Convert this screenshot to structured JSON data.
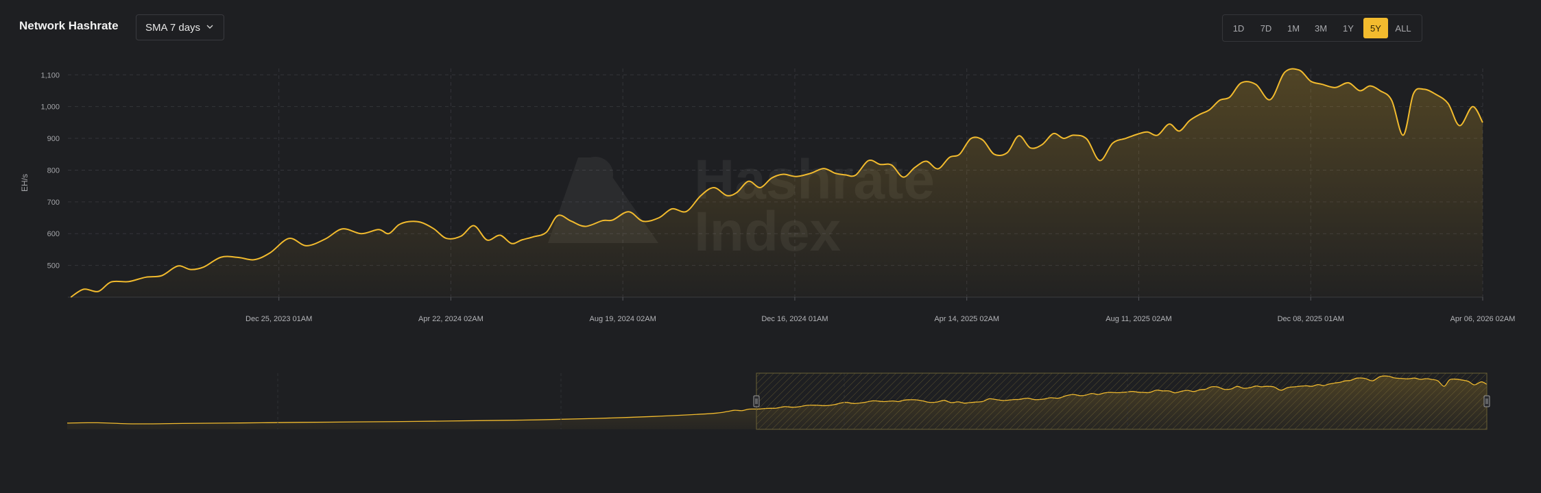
{
  "header": {
    "title": "Network Hashrate",
    "sma_label": "SMA 7 days"
  },
  "ranges": [
    {
      "label": "1D",
      "active": false
    },
    {
      "label": "7D",
      "active": false
    },
    {
      "label": "1M",
      "active": false
    },
    {
      "label": "3M",
      "active": false
    },
    {
      "label": "1Y",
      "active": false
    },
    {
      "label": "5Y",
      "active": true
    },
    {
      "label": "ALL",
      "active": false
    }
  ],
  "watermark": {
    "line1": "Hashrate",
    "line2": "Index"
  },
  "colors": {
    "accent": "#f2bb2e",
    "background": "#1e1f22"
  },
  "chart_data": {
    "type": "area",
    "ylabel": "EH/s",
    "ylim": [
      400,
      1120
    ],
    "yticks": [
      500,
      600,
      700,
      800,
      900,
      1000,
      1100
    ],
    "ytick_labels": [
      "500",
      "600",
      "700",
      "800",
      "900",
      "1,000",
      "1,100"
    ],
    "xlim": [
      "2023-08-01",
      "2026-04-06"
    ],
    "xtick_labels": [
      {
        "date": "2023-12-25",
        "label": "Dec 25, 2023 01AM"
      },
      {
        "date": "2024-04-22",
        "label": "Apr 22, 2024 02AM"
      },
      {
        "date": "2024-08-19",
        "label": "Aug 19, 2024 02AM"
      },
      {
        "date": "2024-12-16",
        "label": "Dec 16, 2024 01AM"
      },
      {
        "date": "2025-04-14",
        "label": "Apr 14, 2025 02AM"
      },
      {
        "date": "2025-08-11",
        "label": "Aug 11, 2025 02AM"
      },
      {
        "date": "2025-12-08",
        "label": "Dec 08, 2025 01AM"
      },
      {
        "date": "2026-04-06",
        "label": "Apr 06, 2026 02AM"
      }
    ],
    "grid": true,
    "series": [
      {
        "x": [
          "2023-08-03",
          "2023-08-12",
          "2023-08-22",
          "2023-08-31",
          "2023-09-12",
          "2023-09-24",
          "2023-10-05",
          "2023-10-16",
          "2023-10-25",
          "2023-11-03",
          "2023-11-15",
          "2023-11-27",
          "2023-12-08",
          "2023-12-19",
          "2024-01-01",
          "2024-01-13",
          "2024-01-26",
          "2024-02-07",
          "2024-02-20",
          "2024-03-03",
          "2024-03-10",
          "2024-03-17",
          "2024-03-24",
          "2024-04-01",
          "2024-04-10",
          "2024-04-19",
          "2024-04-29",
          "2024-05-08",
          "2024-05-17",
          "2024-05-26",
          "2024-06-03",
          "2024-06-10",
          "2024-06-18",
          "2024-06-27",
          "2024-07-05",
          "2024-07-14",
          "2024-07-24",
          "2024-08-05",
          "2024-08-12",
          "2024-08-23",
          "2024-09-02",
          "2024-09-13",
          "2024-09-22",
          "2024-10-02",
          "2024-10-12",
          "2024-10-21",
          "2024-10-30",
          "2024-11-06",
          "2024-11-14",
          "2024-11-22",
          "2024-11-30",
          "2024-12-08",
          "2024-12-17",
          "2024-12-27",
          "2025-01-05",
          "2025-01-13",
          "2025-01-20",
          "2025-01-27",
          "2025-02-05",
          "2025-02-13",
          "2025-02-21",
          "2025-03-01",
          "2025-03-09",
          "2025-03-17",
          "2025-03-25",
          "2025-04-02",
          "2025-04-09",
          "2025-04-17",
          "2025-04-25",
          "2025-05-03",
          "2025-05-12",
          "2025-05-20",
          "2025-05-28",
          "2025-06-05",
          "2025-06-13",
          "2025-06-20",
          "2025-06-27",
          "2025-07-06",
          "2025-07-15",
          "2025-07-24",
          "2025-08-02",
          "2025-08-10",
          "2025-08-17",
          "2025-08-24",
          "2025-09-01",
          "2025-09-08",
          "2025-09-15",
          "2025-09-22",
          "2025-09-29",
          "2025-10-06",
          "2025-10-13",
          "2025-10-21",
          "2025-10-31",
          "2025-11-10",
          "2025-11-20",
          "2025-11-30",
          "2025-12-08",
          "2025-12-16",
          "2025-12-25",
          "2026-01-03",
          "2026-01-11",
          "2026-01-18",
          "2026-01-25",
          "2026-02-02",
          "2026-02-10",
          "2026-02-17",
          "2026-02-24",
          "2026-03-04",
          "2026-03-13",
          "2026-03-21",
          "2026-03-30",
          "2026-04-06"
        ],
        "y": [
          400,
          425,
          418,
          448,
          449,
          463,
          468,
          498,
          487,
          495,
          526,
          525,
          518,
          540,
          585,
          562,
          583,
          615,
          600,
          613,
          600,
          628,
          638,
          636,
          616,
          585,
          592,
          625,
          580,
          595,
          569,
          580,
          590,
          604,
          657,
          640,
          623,
          641,
          643,
          669,
          639,
          650,
          678,
          670,
          720,
          745,
          720,
          730,
          765,
          745,
          775,
          787,
          780,
          790,
          805,
          790,
          785,
          784,
          830,
          818,
          816,
          778,
          808,
          828,
          804,
          840,
          850,
          900,
          895,
          850,
          855,
          908,
          870,
          880,
          915,
          900,
          910,
          898,
          830,
          885,
          900,
          913,
          920,
          910,
          945,
          923,
          955,
          975,
          990,
          1020,
          1030,
          1075,
          1070,
          1022,
          1108,
          1115,
          1080,
          1070,
          1060,
          1075,
          1050,
          1065,
          1050,
          1020,
          910,
          1040,
          1055,
          1040,
          1010,
          940,
          1000,
          950
        ]
      }
    ]
  }
}
